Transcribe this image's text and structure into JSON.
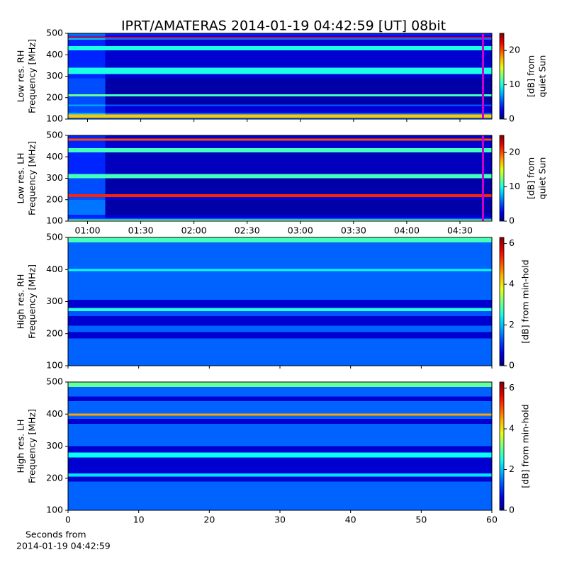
{
  "title": "IPRT/AMATERAS 2014-01-19 04:42:59 [UT]   08bit",
  "chart_data": [
    {
      "type": "heatmap",
      "ylabel": [
        "Low res. RH",
        "Frequency [MHz]"
      ],
      "ylim": [
        100,
        500
      ],
      "yticks": [
        100,
        200,
        300,
        400,
        500
      ],
      "xlim": [
        49,
        288
      ],
      "sharex": 1,
      "x_edges": [
        49,
        70,
        288
      ],
      "y_edges": [
        100,
        107,
        122,
        128,
        160,
        168,
        205,
        215,
        290,
        310,
        340,
        420,
        440,
        470,
        477,
        483,
        490,
        500
      ],
      "values": [
        [
          6,
          6
        ],
        [
          17,
          17
        ],
        [
          8,
          6
        ],
        [
          5,
          2
        ],
        [
          7,
          5
        ],
        [
          5,
          1
        ],
        [
          12,
          11
        ],
        [
          5,
          1
        ],
        [
          4,
          2
        ],
        [
          10,
          10
        ],
        [
          4,
          2
        ],
        [
          10,
          10
        ],
        [
          4,
          2
        ],
        [
          8,
          6
        ],
        [
          22,
          22
        ],
        [
          5,
          3
        ],
        [
          6,
          4
        ]
      ],
      "marker": {
        "x": 283,
        "color": "#cc00cc"
      },
      "colorbar": {
        "label": [
          "[dB] from",
          "quiet Sun"
        ],
        "clim": [
          0,
          25
        ],
        "ticks": [
          0,
          10,
          20
        ]
      }
    },
    {
      "type": "heatmap",
      "ylabel": [
        "Low res. LH",
        "Frequency [MHz]"
      ],
      "ylim": [
        100,
        500
      ],
      "yticks": [
        100,
        200,
        300,
        400,
        500
      ],
      "xlim": [
        49,
        288
      ],
      "xticks": [
        {
          "value": 60,
          "label": "01:00"
        },
        {
          "value": 90,
          "label": "01:30"
        },
        {
          "value": 120,
          "label": "02:00"
        },
        {
          "value": 150,
          "label": "02:30"
        },
        {
          "value": 180,
          "label": "03:00"
        },
        {
          "value": 210,
          "label": "03:30"
        },
        {
          "value": 240,
          "label": "04:00"
        },
        {
          "value": 270,
          "label": "04:30"
        }
      ],
      "x_edges": [
        49,
        70,
        288
      ],
      "y_edges": [
        100,
        108,
        115,
        130,
        200,
        213,
        225,
        300,
        320,
        420,
        440,
        475,
        485,
        500
      ],
      "values": [
        [
          12,
          12
        ],
        [
          5,
          5
        ],
        [
          4,
          2
        ],
        [
          6,
          1
        ],
        [
          5,
          2
        ],
        [
          21,
          21
        ],
        [
          5,
          1
        ],
        [
          11,
          11
        ],
        [
          4,
          1.5
        ],
        [
          11,
          11
        ],
        [
          4,
          2
        ],
        [
          20,
          20
        ],
        [
          4,
          2
        ]
      ],
      "marker": {
        "x": 283,
        "color": "#cc00cc"
      },
      "colorbar": {
        "label": [
          "[dB] from",
          "quiet Sun"
        ],
        "clim": [
          0,
          25
        ],
        "ticks": [
          0,
          10,
          20
        ]
      }
    },
    {
      "type": "heatmap",
      "ylabel": [
        "High res. RH",
        "Frequency [MHz]"
      ],
      "ylim": [
        100,
        500
      ],
      "yticks": [
        100,
        200,
        300,
        400,
        500
      ],
      "xlim": [
        0,
        60
      ],
      "sharex": 3,
      "x_edges": [
        0,
        60
      ],
      "y_edges": [
        100,
        185,
        205,
        225,
        255,
        270,
        280,
        305,
        395,
        402,
        485,
        500
      ],
      "values": [
        [
          1.4
        ],
        [
          0.5
        ],
        [
          1.4
        ],
        [
          0.5
        ],
        [
          1.3
        ],
        [
          2.6
        ],
        [
          0.5
        ],
        [
          1.4
        ],
        [
          2.4
        ],
        [
          1.4
        ],
        [
          2.8
        ]
      ],
      "colorbar": {
        "label": [
          "[dB] from min-hold"
        ],
        "clim": [
          0,
          6.3
        ],
        "ticks": [
          0,
          2,
          4,
          6
        ]
      }
    },
    {
      "type": "heatmap",
      "ylabel": [
        "High res. LH",
        "Frequency [MHz]"
      ],
      "ylim": [
        100,
        500
      ],
      "yticks": [
        100,
        200,
        300,
        400,
        500
      ],
      "xlim": [
        0,
        60
      ],
      "xticks": [
        0,
        10,
        20,
        30,
        40,
        50,
        60
      ],
      "xlabel": [
        "Seconds from",
        "2014-01-19 04:42:59"
      ],
      "x_edges": [
        0,
        60
      ],
      "y_edges": [
        100,
        190,
        205,
        215,
        265,
        280,
        300,
        370,
        385,
        395,
        402,
        440,
        455,
        485,
        500
      ],
      "values": [
        [
          1.4
        ],
        [
          0.5
        ],
        [
          2.2
        ],
        [
          0.5
        ],
        [
          2.4
        ],
        [
          0.5
        ],
        [
          1.4
        ],
        [
          0.5
        ],
        [
          1.4
        ],
        [
          4.5
        ],
        [
          1.4
        ],
        [
          0.5
        ],
        [
          1.4
        ],
        [
          3
        ]
      ],
      "colorbar": {
        "label": [
          "[dB] from min-hold"
        ],
        "clim": [
          0,
          6.3
        ],
        "ticks": [
          0,
          2,
          4,
          6
        ]
      }
    }
  ]
}
